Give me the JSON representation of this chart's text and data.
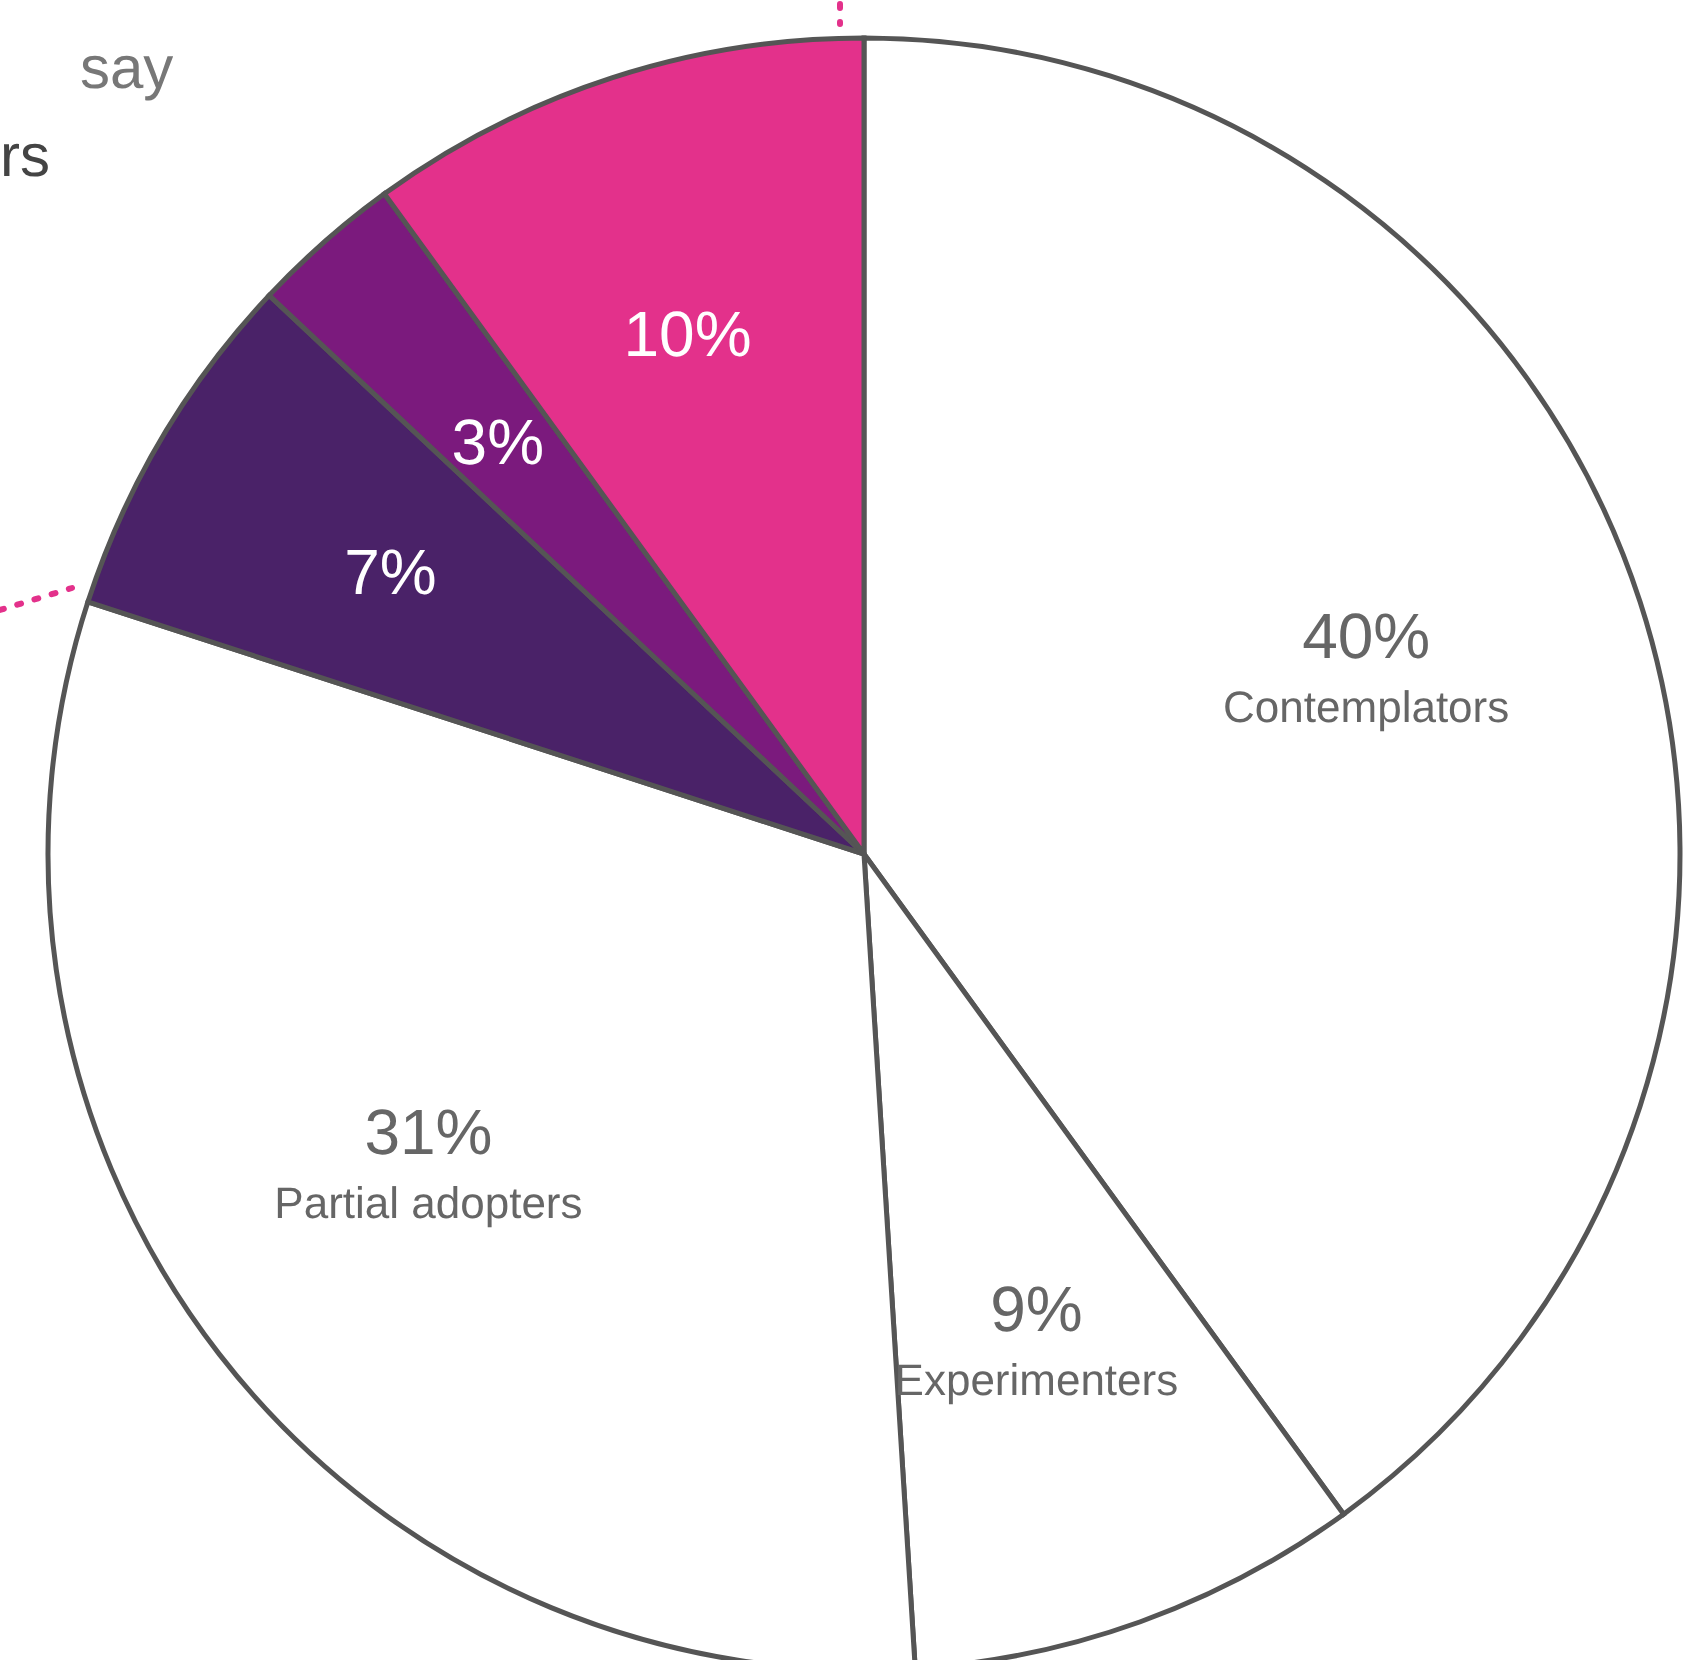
{
  "chart_data": {
    "type": "pie",
    "categories": [
      "Contemplators",
      "Experimenters",
      "Partial adopters",
      null,
      null,
      null
    ],
    "values": [
      40,
      9,
      31,
      7,
      3,
      10
    ],
    "value_labels": [
      "40%",
      "9%",
      "31%",
      "7%",
      "3%",
      "10%"
    ],
    "colors": [
      "#ffffff",
      "#ffffff",
      "#ffffff",
      "#4a2268",
      "#7b1a7d",
      "#e3318b"
    ],
    "annotations": [
      "say",
      "rs"
    ]
  }
}
